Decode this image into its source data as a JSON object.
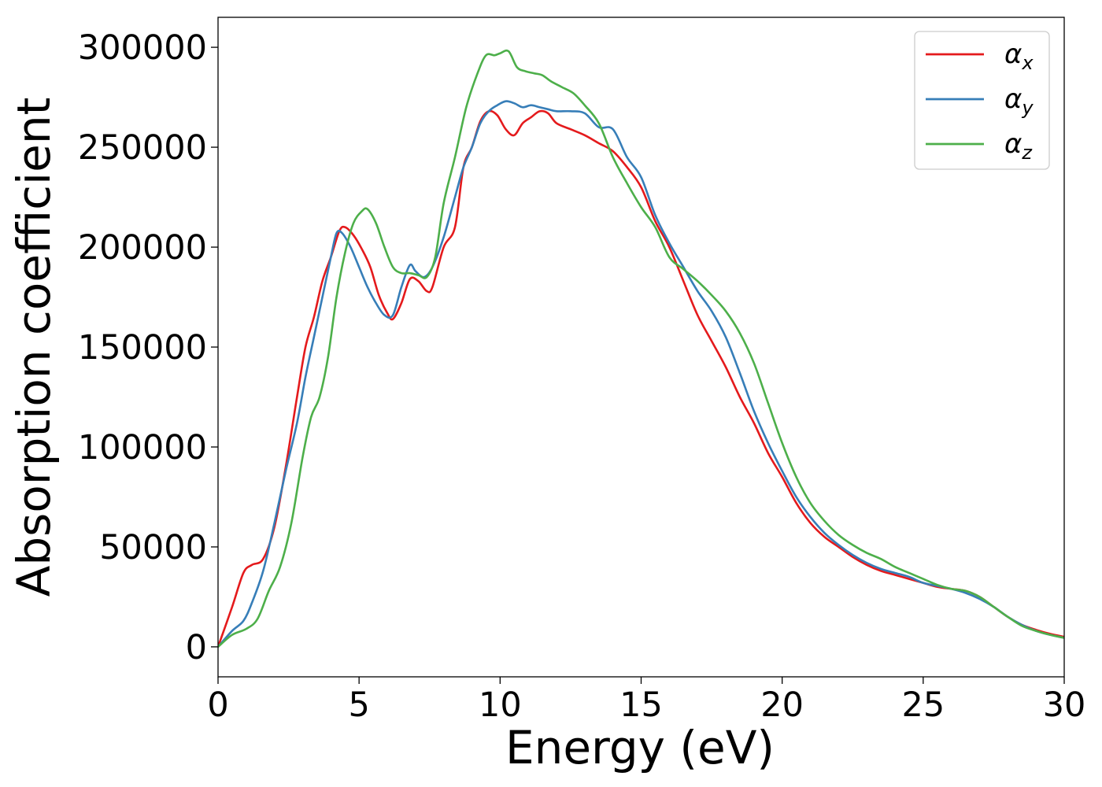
{
  "chart_data": {
    "type": "line",
    "title": "",
    "xlabel": "Energy (eV)",
    "ylabel": "Absorption coefficient",
    "xlim": [
      0,
      30
    ],
    "ylim": [
      -15000,
      315000
    ],
    "xticks": [
      0,
      5,
      10,
      15,
      20,
      25,
      30
    ],
    "xtick_labels": [
      "0",
      "5",
      "10",
      "15",
      "20",
      "25",
      "30"
    ],
    "yticks": [
      0,
      50000,
      100000,
      150000,
      200000,
      250000,
      300000
    ],
    "ytick_labels": [
      "0",
      "50000",
      "100000",
      "150000",
      "200000",
      "250000",
      "300000"
    ],
    "grid": false,
    "legend": "top-right",
    "series": [
      {
        "name": "αx",
        "name_base": "α",
        "name_sub": "x",
        "color": "#e41a1c",
        "x": [
          0,
          0.5,
          0.9,
          1.2,
          1.6,
          2.0,
          2.4,
          2.8,
          3.1,
          3.4,
          3.7,
          4.0,
          4.3,
          4.5,
          4.8,
          5.1,
          5.4,
          5.7,
          6.0,
          6.2,
          6.5,
          6.8,
          7.1,
          7.4,
          7.6,
          8.0,
          8.4,
          8.7,
          9.0,
          9.3,
          9.6,
          9.9,
          10.2,
          10.5,
          10.8,
          11.1,
          11.4,
          11.7,
          12.0,
          12.5,
          13.0,
          13.5,
          14.0,
          14.5,
          15.0,
          15.5,
          16.0,
          16.5,
          17.0,
          17.5,
          18.0,
          18.5,
          19.0,
          19.5,
          20.0,
          20.5,
          21.0,
          21.5,
          22.0,
          22.5,
          23.0,
          23.5,
          24.0,
          24.5,
          25.0,
          25.5,
          26.0,
          26.5,
          27.0,
          27.5,
          28.0,
          28.5,
          29.0,
          29.5,
          30.0
        ],
        "values": [
          0,
          20000,
          37000,
          41000,
          44000,
          60000,
          90000,
          125000,
          150000,
          165000,
          183000,
          195000,
          208000,
          210000,
          206000,
          199000,
          190000,
          176000,
          167000,
          164000,
          172000,
          184000,
          183000,
          178000,
          180000,
          200000,
          210000,
          240000,
          250000,
          263000,
          268000,
          266000,
          259000,
          256000,
          262000,
          265000,
          268000,
          267000,
          262000,
          259000,
          256000,
          252000,
          248000,
          240000,
          230000,
          213000,
          200000,
          183000,
          166000,
          153000,
          140000,
          125000,
          112000,
          97000,
          85000,
          72000,
          62000,
          55000,
          50000,
          45000,
          41000,
          38000,
          36000,
          34000,
          32000,
          30000,
          29000,
          28000,
          25000,
          20000,
          15000,
          11000,
          8500,
          6500,
          5000
        ]
      },
      {
        "name": "αy",
        "name_base": "α",
        "name_sub": "y",
        "color": "#377eb8",
        "x": [
          0,
          0.5,
          0.9,
          1.2,
          1.6,
          2.0,
          2.4,
          2.8,
          3.1,
          3.4,
          3.7,
          4.0,
          4.2,
          4.4,
          4.7,
          5.0,
          5.3,
          5.6,
          5.9,
          6.2,
          6.5,
          6.8,
          7.0,
          7.3,
          7.6,
          8.0,
          8.4,
          8.7,
          9.0,
          9.3,
          9.6,
          9.9,
          10.2,
          10.5,
          10.8,
          11.1,
          11.4,
          11.7,
          12.0,
          12.5,
          13.0,
          13.5,
          14.0,
          14.5,
          15.0,
          15.5,
          16.0,
          16.5,
          17.0,
          17.5,
          18.0,
          18.5,
          19.0,
          19.5,
          20.0,
          20.5,
          21.0,
          21.5,
          22.0,
          22.5,
          23.0,
          23.5,
          24.0,
          24.5,
          25.0,
          25.5,
          26.0,
          26.5,
          27.0,
          27.5,
          28.0,
          28.5,
          29.0,
          29.5,
          30.0
        ],
        "values": [
          0,
          8000,
          13000,
          22000,
          38000,
          62000,
          88000,
          112000,
          135000,
          155000,
          175000,
          195000,
          207000,
          207000,
          200000,
          190000,
          180000,
          172000,
          166000,
          166000,
          180000,
          191000,
          188000,
          185000,
          190000,
          205000,
          225000,
          240000,
          250000,
          262000,
          268000,
          271000,
          273000,
          272000,
          270000,
          271000,
          270000,
          269000,
          268000,
          268000,
          267000,
          260000,
          259000,
          245000,
          235000,
          216000,
          202000,
          190000,
          178000,
          168000,
          155000,
          137000,
          118000,
          102000,
          88000,
          75000,
          65000,
          57000,
          51000,
          46000,
          42000,
          39000,
          37000,
          35000,
          32000,
          30500,
          29000,
          27000,
          24000,
          20000,
          15000,
          11000,
          8000,
          6000,
          4500
        ]
      },
      {
        "name": "αz",
        "name_base": "α",
        "name_sub": "z",
        "color": "#4daf4a",
        "x": [
          0,
          0.5,
          1.0,
          1.4,
          1.8,
          2.2,
          2.6,
          3.0,
          3.3,
          3.6,
          3.9,
          4.2,
          4.5,
          4.8,
          5.1,
          5.3,
          5.6,
          5.9,
          6.2,
          6.5,
          6.8,
          7.1,
          7.4,
          7.7,
          8.0,
          8.4,
          8.8,
          9.2,
          9.5,
          9.8,
          10.0,
          10.3,
          10.6,
          10.9,
          11.2,
          11.5,
          11.8,
          12.2,
          12.6,
          13.0,
          13.5,
          14.0,
          14.5,
          15.0,
          15.5,
          16.0,
          16.5,
          17.0,
          17.5,
          18.0,
          18.5,
          19.0,
          19.5,
          20.0,
          20.5,
          21.0,
          21.5,
          22.0,
          22.5,
          23.0,
          23.5,
          24.0,
          24.5,
          25.0,
          25.5,
          26.0,
          26.5,
          27.0,
          27.5,
          28.0,
          28.5,
          29.0,
          29.5,
          30.0
        ],
        "values": [
          0,
          6000,
          9000,
          14000,
          28000,
          40000,
          62000,
          95000,
          115000,
          125000,
          145000,
          175000,
          197000,
          212000,
          218000,
          219000,
          212000,
          200000,
          190000,
          187000,
          187000,
          186000,
          185000,
          195000,
          222000,
          245000,
          270000,
          287000,
          296000,
          296000,
          297000,
          298000,
          290000,
          288000,
          287000,
          286000,
          283000,
          280000,
          277000,
          271000,
          262000,
          245000,
          232000,
          220000,
          210000,
          195000,
          189000,
          183000,
          176000,
          168000,
          157000,
          142000,
          122000,
          102000,
          85000,
          72000,
          63000,
          56000,
          51000,
          47000,
          44000,
          40000,
          37000,
          34000,
          31000,
          29000,
          28000,
          25000,
          20000,
          15000,
          10500,
          8000,
          6000,
          4500
        ]
      }
    ]
  }
}
